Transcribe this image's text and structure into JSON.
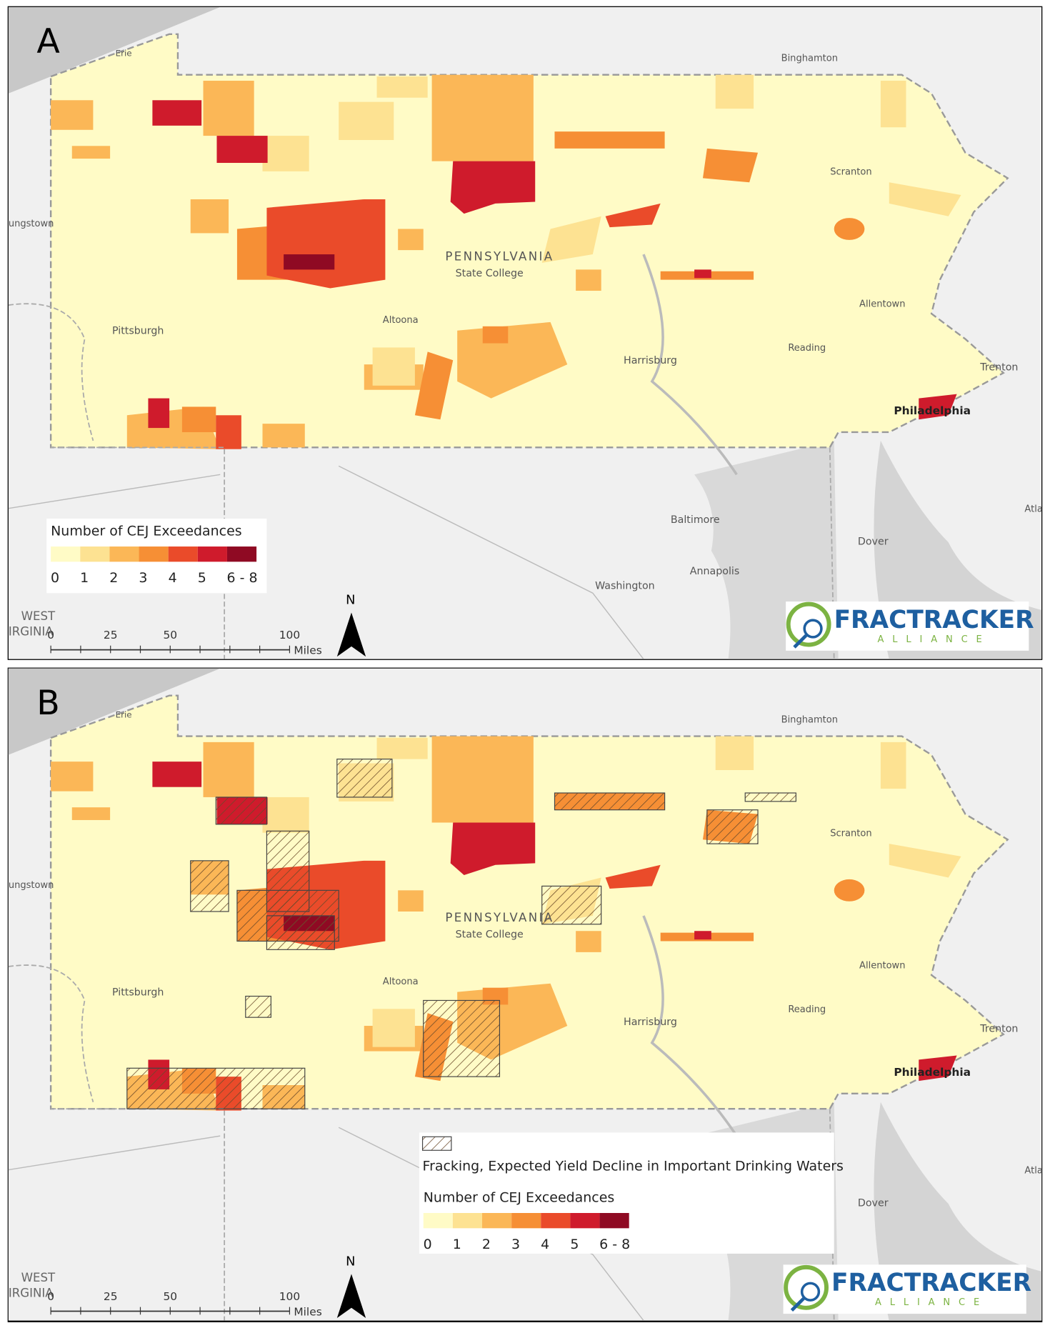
{
  "panels": [
    {
      "label": "A",
      "legend": {
        "title": "Number of CEJ Exceedances",
        "classes": [
          "0",
          "1",
          "2",
          "3",
          "4",
          "5",
          "6 - 8"
        ],
        "colors": [
          "#fffbc6",
          "#fde292",
          "#fbb757",
          "#f68f35",
          "#ea4b2a",
          "#cf1b2c",
          "#8f0a23"
        ]
      }
    },
    {
      "label": "B",
      "legend": {
        "hatch_label": "Fracking, Expected Yield Decline in Important Drinking Waters",
        "title": "Number of CEJ Exceedances",
        "classes": [
          "0",
          "1",
          "2",
          "3",
          "4",
          "5",
          "6 - 8"
        ],
        "colors": [
          "#fffbc6",
          "#fde292",
          "#fbb757",
          "#f68f35",
          "#ea4b2a",
          "#cf1b2c",
          "#8f0a23"
        ]
      }
    }
  ],
  "map_labels": [
    "Erie",
    "Binghamton",
    "ungstown",
    "Scranton",
    "PENNSYLVANIA",
    "State College",
    "Allentown",
    "Pittsburgh",
    "Altoona",
    "Reading",
    "Harrisburg",
    "Trenton",
    "Philadelphia",
    "Baltimore",
    "Dover",
    "Annapolis",
    "Washington",
    "WEST",
    "IRGINIA",
    "Atla"
  ],
  "scale_bar": {
    "ticks": [
      0,
      25,
      50,
      100
    ],
    "unit": "Miles"
  },
  "north": "N",
  "logo": {
    "name": "FRACTRACKER",
    "sub": "ALLIANCE"
  }
}
